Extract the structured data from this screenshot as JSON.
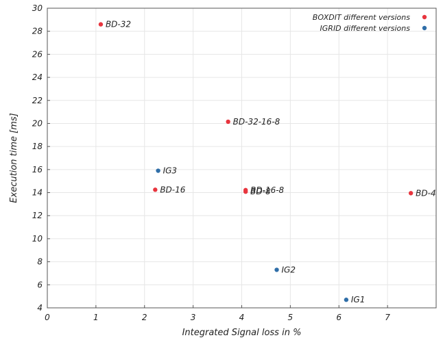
{
  "chart_data": {
    "type": "scatter",
    "title": "",
    "xlabel": "Integrated Signal loss in %",
    "ylabel": "Execution time [ms]",
    "xlim": [
      0,
      8
    ],
    "ylim": [
      4,
      30
    ],
    "xticks": [
      0,
      1,
      2,
      3,
      4,
      5,
      6,
      7
    ],
    "yticks": [
      4,
      6,
      8,
      10,
      12,
      14,
      16,
      18,
      20,
      22,
      24,
      26,
      28,
      30
    ],
    "grid": true,
    "legend_position": "top-right",
    "series": [
      {
        "name": "BOXDIT different versions",
        "color": "#e8353e",
        "points": [
          {
            "label": "BD-32",
            "x": 1.1,
            "y": 28.6
          },
          {
            "label": "BD-32-16-8",
            "x": 3.72,
            "y": 20.15
          },
          {
            "label": "BD-16",
            "x": 2.22,
            "y": 14.25
          },
          {
            "label": "BD-16-8",
            "x": 4.08,
            "y": 14.22
          },
          {
            "label": "BD-8",
            "x": 4.08,
            "y": 14.08
          },
          {
            "label": "BD-4",
            "x": 7.48,
            "y": 13.95
          }
        ]
      },
      {
        "name": "IGRID different versions",
        "color": "#2f6ea8",
        "points": [
          {
            "label": "IG3",
            "x": 2.28,
            "y": 15.9
          },
          {
            "label": "IG2",
            "x": 4.72,
            "y": 7.3
          },
          {
            "label": "IG1",
            "x": 6.15,
            "y": 4.7
          }
        ]
      }
    ]
  }
}
